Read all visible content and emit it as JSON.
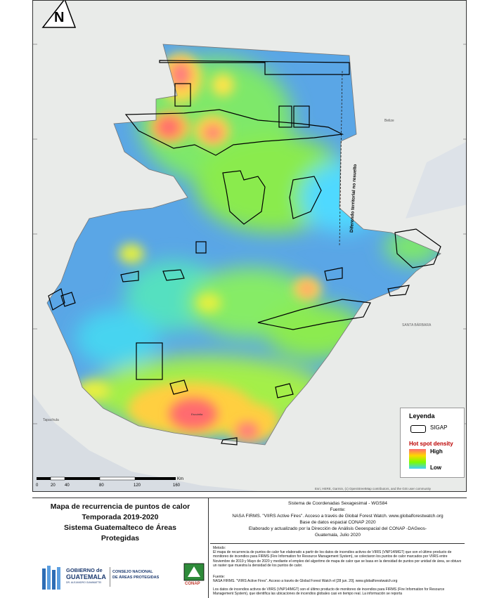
{
  "map": {
    "labels": {
      "belize": "Belize",
      "disputed": "Diferendo territorial no resuelto",
      "santa_barbara": "SANTA BÁRBARA",
      "tapachula": "Tapachula",
      "escuintla": "Escuintla"
    },
    "north_arrow": "N",
    "scale": {
      "ticks": [
        "0",
        "20",
        "40",
        "80",
        "120",
        "160"
      ],
      "unit": "Km"
    },
    "attribution": "Esri, HERE, Garmin, (c) OpenStreetMap contributors, and the GIS user community"
  },
  "legend": {
    "title": "Leyenda",
    "sigap_label": "SIGAP",
    "density_title": "Hot spot density",
    "high": "High",
    "low": "Low"
  },
  "title_block": {
    "line1": "Mapa de recurrencia de puntos de calor",
    "line2": "Temporada 2019-2020",
    "line3": "Sistema Guatemalteco de Áreas",
    "line4": "Protegidas"
  },
  "logos": {
    "gobierno_1": "GOBIERNO de",
    "gobierno_2": "GUATEMALA",
    "gobierno_3": "DR. ALEJANDRO GIAMMATTEI",
    "consejo_1": "CONSEJO NACIONAL",
    "consejo_2": "DE ÁREAS PROTEGIDAS",
    "conap": "CONAP"
  },
  "info_block": {
    "crs": "Sistema de Coordenadas Sexagesimal - WGS84",
    "fuente_label": "Fuente:",
    "fuente": "NASA FIRMS. \"VIIRS Active Fires\". Acceso a través de Global Forest Watch. www.globalforestwatch.org",
    "base": "Base de datos espacial CONAP 2020",
    "elaborado": "Elaborado y actualizado por la Dirección de Análisis Geoespacial del CONAP -DAGeos-",
    "lugar": "Guatemala, Julio 2020",
    "metodo_label": "Metodo:",
    "metodo": "El mapa de recurrencia de puntos de calor fue elaborado a partir de los datos de incendios activos de VIIRS (VNP14IMGT) que son el último producto de monitoreo de incendios para FIRMS (Fire Information for Resource Management System), se colectaron los puntos de calor marcados por VIIRS entre Noviembre de 2019 y Mayo de 2020 y mediante el empleo del algoritmo de mapa de calor que se basa en la densidad de puntos por unidad de área, se obtuvo un raster que muestra la densidad de los puntos de calor.",
    "fuente2_label": "Fuente:",
    "fuente2": "NASA FIRMS. \"VIIRS Active Fires\". Acceso a través de Global Forest Watch el [28 jun. 20]. www.globalforestwatch.org",
    "extra": "Los datos de incendios activos de VIIRS (VNP14IMGT) son el último producto de monitoreo de incendios para FIRMS (Fire Information for Resource Management System), que identifica las ubicaciones de incendios globales casi en tiempo real. La información se reporta"
  },
  "colors": {
    "high": "#ff6b70",
    "mid": "#ffd700",
    "green": "#7cfc00",
    "low": "#3fd0ff",
    "blue": "#5a9ee0"
  }
}
